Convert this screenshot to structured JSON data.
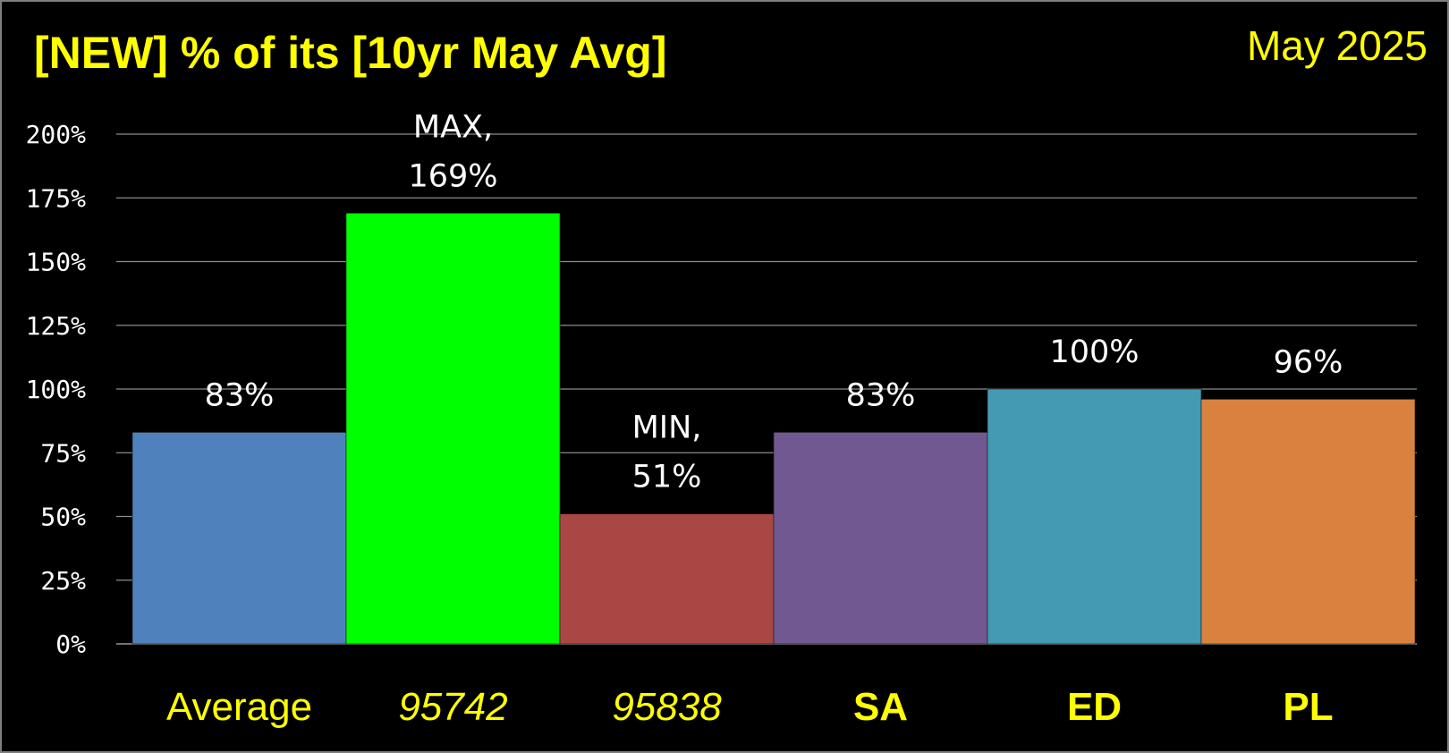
{
  "title": "[NEW] % of its [10yr May Avg]",
  "date_label": "May 2025",
  "chart_data": {
    "type": "bar",
    "title": "[NEW] % of its [10yr May Avg]",
    "ylim": [
      0,
      200
    ],
    "y_ticks": [
      0,
      25,
      50,
      75,
      100,
      125,
      150,
      175,
      200
    ],
    "y_tick_labels": [
      "0%",
      "25%",
      "50%",
      "75%",
      "100%",
      "125%",
      "150%",
      "175%",
      "200%"
    ],
    "grid": true,
    "categories": [
      "Average",
      "95742",
      "95838",
      "SA",
      "ED",
      "PL"
    ],
    "category_styles": [
      "normal",
      "italic",
      "italic",
      "bold",
      "bold",
      "bold"
    ],
    "values": [
      83,
      169,
      51,
      83,
      100,
      96
    ],
    "data_labels": [
      [
        "83%"
      ],
      [
        "MAX,",
        "169%"
      ],
      [
        "MIN,",
        "51%"
      ],
      [
        "83%"
      ],
      [
        "100%"
      ],
      [
        "96%"
      ]
    ],
    "colors": [
      "#4f81bd",
      "#00ff00",
      "#a94745",
      "#715891",
      "#439ab2",
      "#d9823f"
    ]
  }
}
